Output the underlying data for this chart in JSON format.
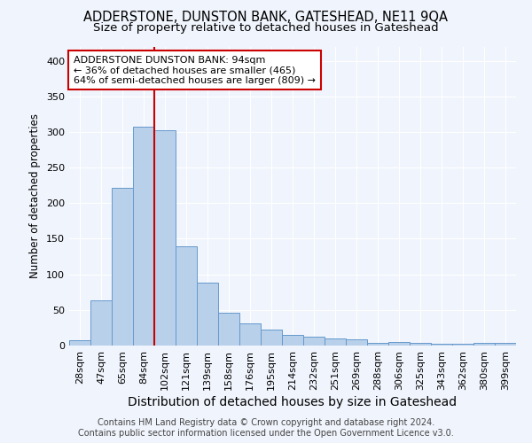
{
  "title": "ADDERSTONE, DUNSTON BANK, GATESHEAD, NE11 9QA",
  "subtitle": "Size of property relative to detached houses in Gateshead",
  "xlabel": "Distribution of detached houses by size in Gateshead",
  "ylabel": "Number of detached properties",
  "categories": [
    "28sqm",
    "47sqm",
    "65sqm",
    "84sqm",
    "102sqm",
    "121sqm",
    "139sqm",
    "158sqm",
    "176sqm",
    "195sqm",
    "214sqm",
    "232sqm",
    "251sqm",
    "269sqm",
    "288sqm",
    "306sqm",
    "325sqm",
    "343sqm",
    "362sqm",
    "380sqm",
    "399sqm"
  ],
  "values": [
    8,
    64,
    222,
    307,
    302,
    140,
    88,
    46,
    31,
    22,
    15,
    13,
    10,
    9,
    4,
    5,
    4,
    3,
    3,
    4,
    4
  ],
  "bar_color": "#b8d0ea",
  "bar_edge_color": "#6699cc",
  "vline_color": "#cc0000",
  "vline_x_index": 3,
  "annotation_text": "ADDERSTONE DUNSTON BANK: 94sqm\n← 36% of detached houses are smaller (465)\n64% of semi-detached houses are larger (809) →",
  "annotation_box_color": "#ffffff",
  "annotation_box_edge": "#cc0000",
  "ylim": [
    0,
    420
  ],
  "yticks": [
    0,
    50,
    100,
    150,
    200,
    250,
    300,
    350,
    400
  ],
  "background_color": "#f0f4fc",
  "grid_color": "#ffffff",
  "footer_line1": "Contains HM Land Registry data © Crown copyright and database right 2024.",
  "footer_line2": "Contains public sector information licensed under the Open Government Licence v3.0.",
  "title_fontsize": 10.5,
  "subtitle_fontsize": 9.5,
  "xlabel_fontsize": 10,
  "ylabel_fontsize": 8.5,
  "tick_fontsize": 8,
  "annotation_fontsize": 8,
  "footer_fontsize": 7
}
